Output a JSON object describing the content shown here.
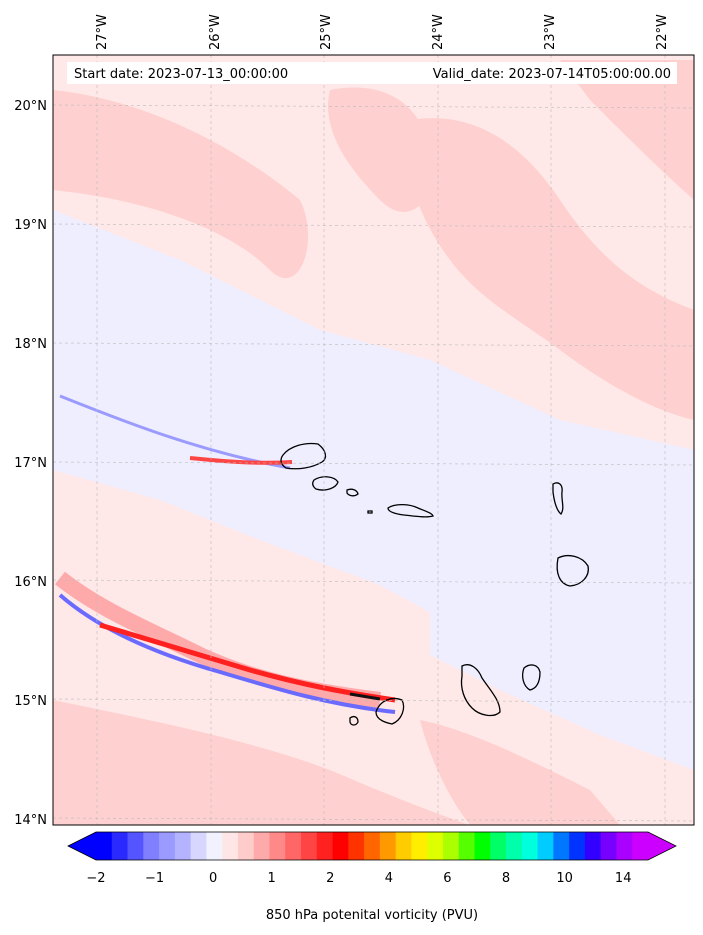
{
  "header": {
    "start_date": "Start date: 2023-07-13_00:00:00",
    "valid_date": "Valid_date: 2023-07-14T05:00:00.00"
  },
  "longitude_labels": [
    "27°W",
    "26°W",
    "25°W",
    "24°W",
    "23°W",
    "22°W"
  ],
  "latitude_labels": [
    "20°N",
    "19°N",
    "18°N",
    "17°N",
    "16°N",
    "15°N",
    "14°N"
  ],
  "colorbar": {
    "label": "850 hPa potenital vorticity (PVU)",
    "tick_labels": [
      "−2",
      "−1",
      "0",
      "1",
      "2",
      "4",
      "6",
      "8",
      "10",
      "14"
    ],
    "colors": [
      "#0000ff",
      "#2a2aff",
      "#5555ff",
      "#7f7fff",
      "#9a9aff",
      "#b3b3ff",
      "#d6d6ff",
      "#f2f2ff",
      "#ffe6e6",
      "#ffcccc",
      "#ffaaaa",
      "#ff8888",
      "#ff6666",
      "#ff4444",
      "#ff2020",
      "#ff0000",
      "#ff3300",
      "#ff6600",
      "#ff9900",
      "#ffcc00",
      "#ffee00",
      "#ddff00",
      "#aaff00",
      "#55ff00",
      "#00ff00",
      "#00ff66",
      "#00ffaa",
      "#00ffdd",
      "#00ccff",
      "#0077ff",
      "#0033ff",
      "#3300ff",
      "#7700ff",
      "#aa00ff",
      "#cc00ff"
    ]
  },
  "field_colors": {
    "background": "#ffe8e8",
    "negative_band": "#eeeeff",
    "positive_patch": "#ffd0d0",
    "strong_positive": "#ff2a2a",
    "strong_negative": "#3b3bff",
    "coast": "#000000"
  }
}
